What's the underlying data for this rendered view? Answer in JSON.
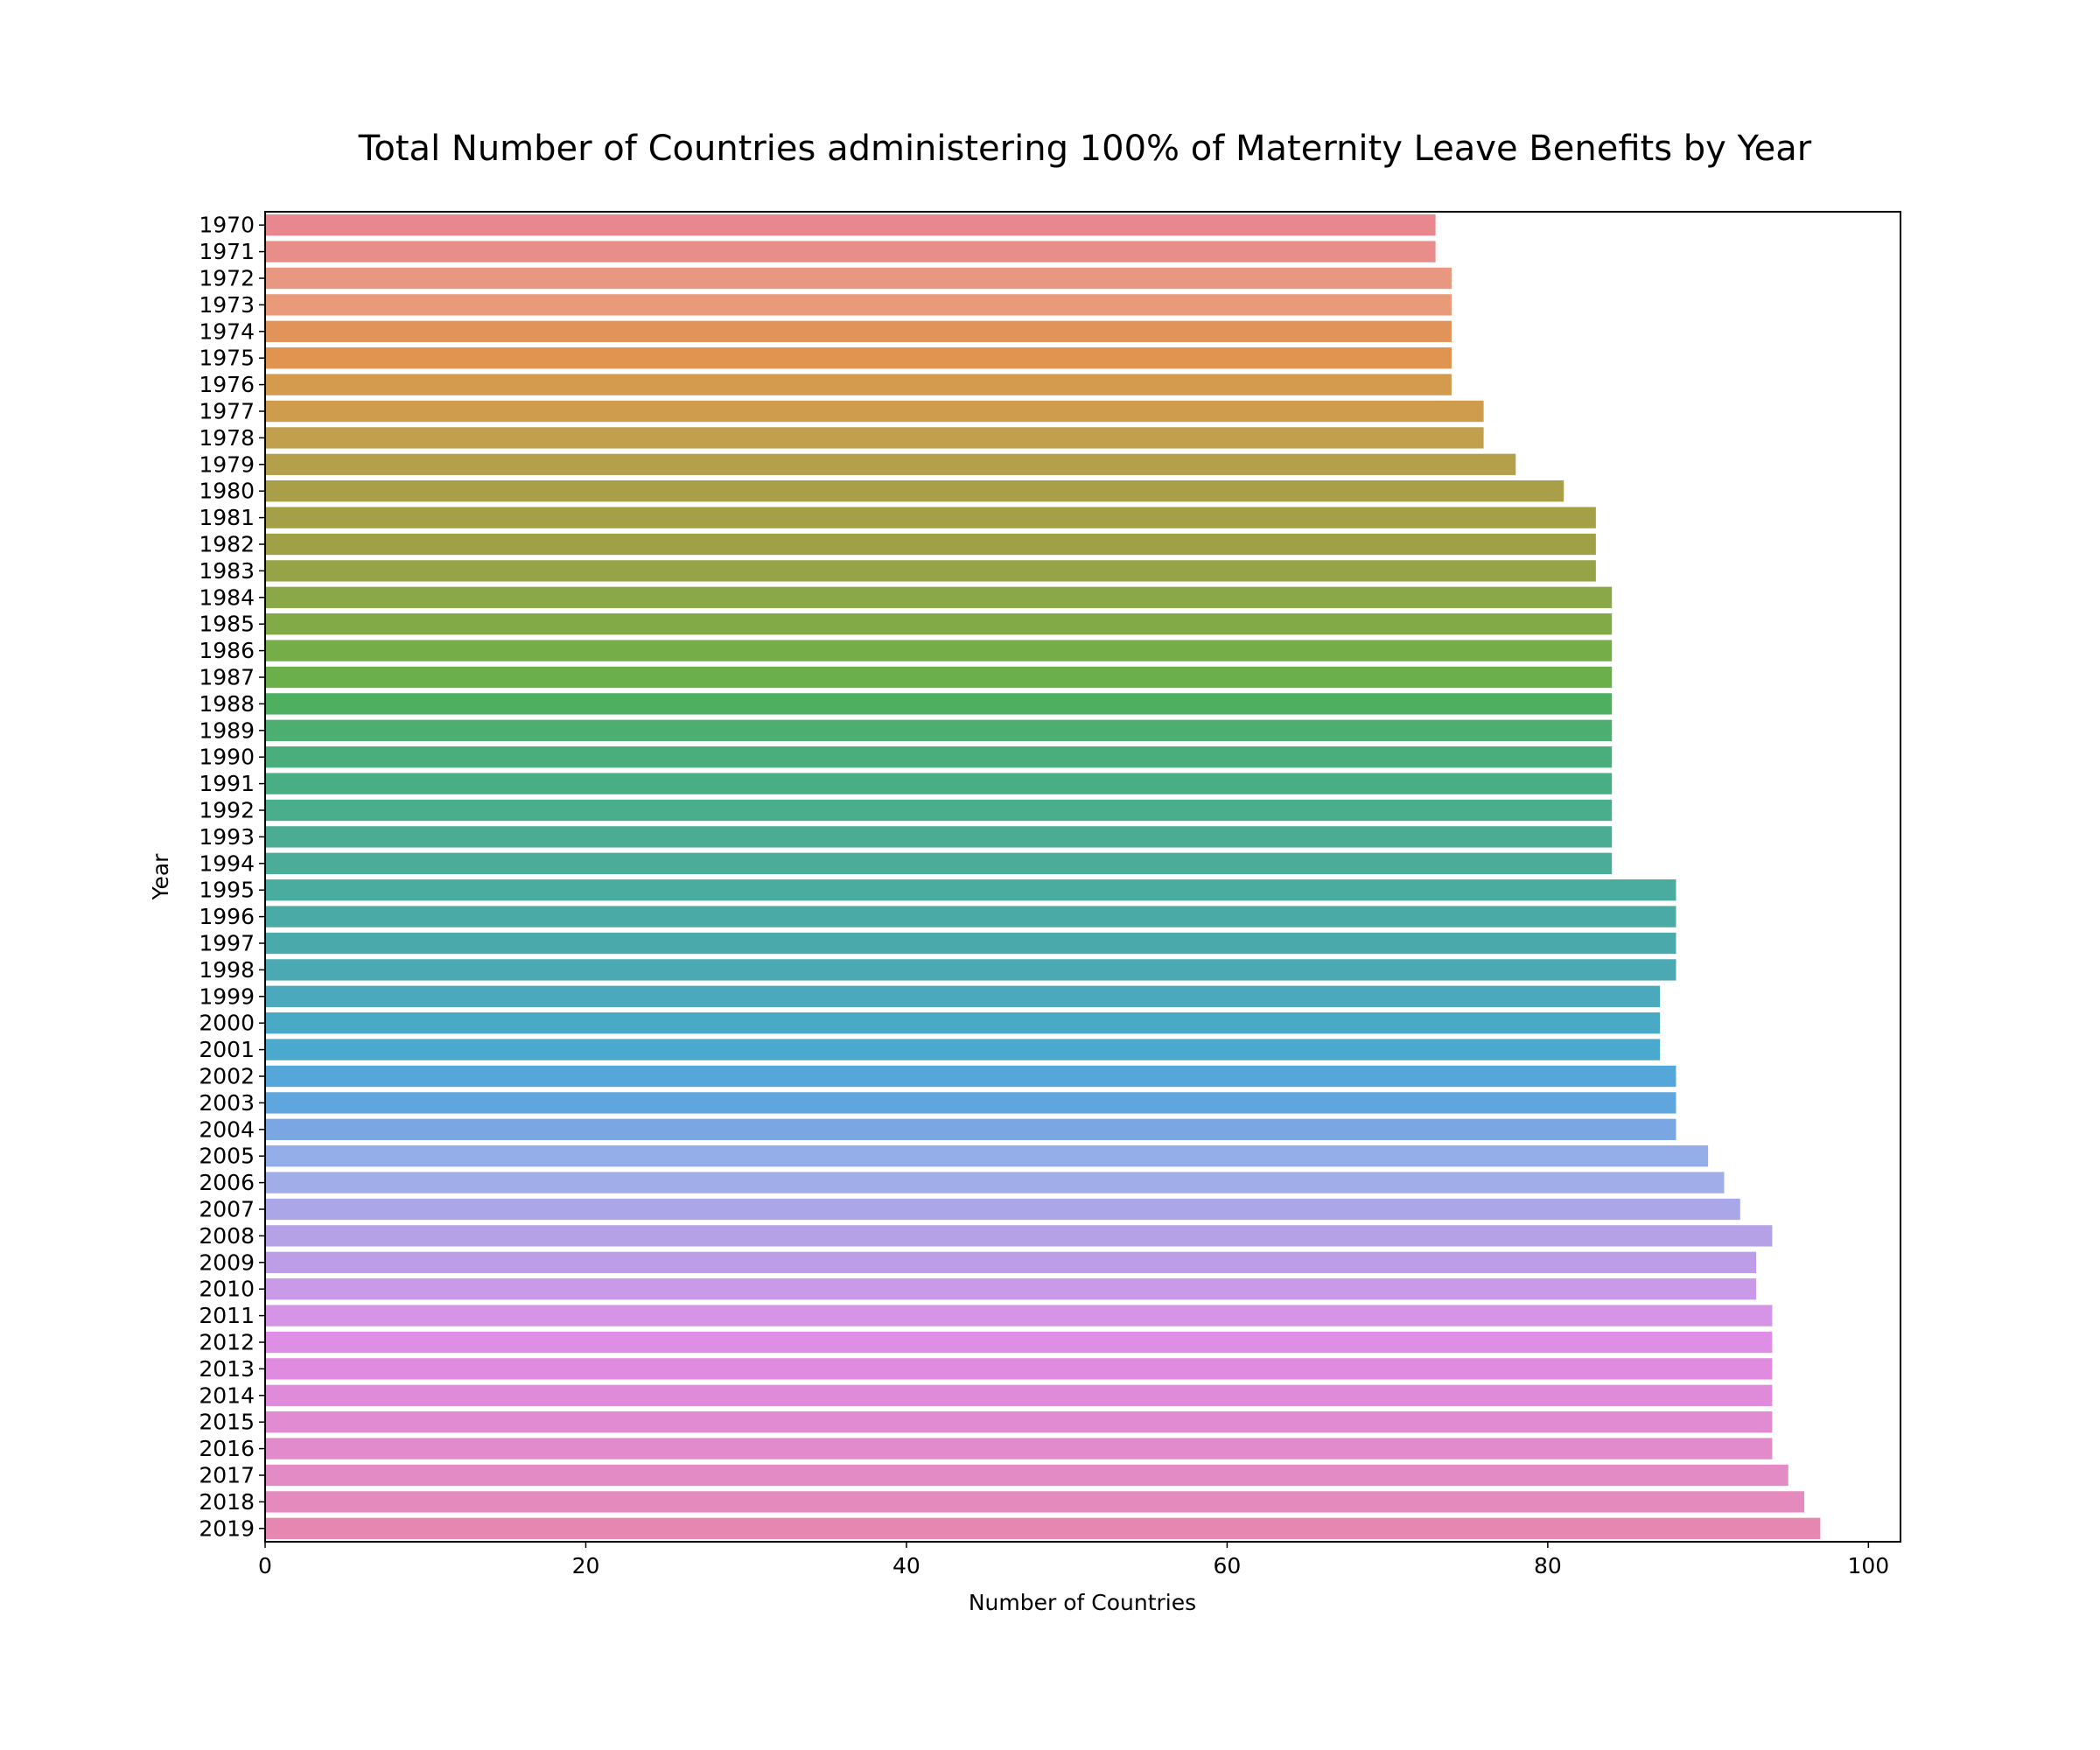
{
  "chart_data": {
    "type": "bar",
    "orientation": "horizontal",
    "title": "Total Number of Countries administering 100% of Maternity Leave Benefits by Year",
    "xlabel": "Number of Countries",
    "ylabel": "Year",
    "xlim": [
      0,
      102
    ],
    "x_ticks": [
      0,
      20,
      40,
      60,
      80,
      100
    ],
    "grid": false,
    "legend": "none",
    "categories": [
      "1970",
      "1971",
      "1972",
      "1973",
      "1974",
      "1975",
      "1976",
      "1977",
      "1978",
      "1979",
      "1980",
      "1981",
      "1982",
      "1983",
      "1984",
      "1985",
      "1986",
      "1987",
      "1988",
      "1989",
      "1990",
      "1991",
      "1992",
      "1993",
      "1994",
      "1995",
      "1996",
      "1997",
      "1998",
      "1999",
      "2000",
      "2001",
      "2002",
      "2003",
      "2004",
      "2005",
      "2006",
      "2007",
      "2008",
      "2009",
      "2010",
      "2011",
      "2012",
      "2013",
      "2014",
      "2015",
      "2016",
      "2017",
      "2018",
      "2019"
    ],
    "values": [
      73,
      73,
      74,
      74,
      74,
      74,
      74,
      76,
      76,
      78,
      81,
      83,
      83,
      83,
      84,
      84,
      84,
      84,
      84,
      84,
      84,
      84,
      84,
      84,
      84,
      88,
      88,
      88,
      88,
      87,
      87,
      87,
      88,
      88,
      88,
      90,
      91,
      92,
      94,
      93,
      93,
      94,
      94,
      94,
      94,
      94,
      94,
      95,
      96,
      97
    ],
    "colors": [
      "#e8878e",
      "#e98d8a",
      "#e89780",
      "#e99a78",
      "#e2935a",
      "#e0944f",
      "#d49a4d",
      "#cf9b4d",
      "#c29f4d",
      "#b49f4b",
      "#a99f48",
      "#a4a047",
      "#a0a046",
      "#97a347",
      "#8aa847",
      "#82ab47",
      "#75ae48",
      "#6aaf49",
      "#4daf5f",
      "#4cae70",
      "#4aae7c",
      "#4aae85",
      "#4aae8c",
      "#4aad93",
      "#4aac99",
      "#4aab9f",
      "#4aaaa5",
      "#4aaaab",
      "#4aa9b3",
      "#4aa9bc",
      "#4aa9c4",
      "#4aa9cc",
      "#56a7d9",
      "#60a6de",
      "#7aa7e3",
      "#93aee8",
      "#a0ade9",
      "#aaa7e8",
      "#b4a1e6",
      "#bd9de6",
      "#c99ae7",
      "#d594e6",
      "#de8fe5",
      "#e18be0",
      "#e08bd9",
      "#e18bd2",
      "#e28bcb",
      "#e38bc4",
      "#e48abc",
      "#e587b0"
    ]
  }
}
